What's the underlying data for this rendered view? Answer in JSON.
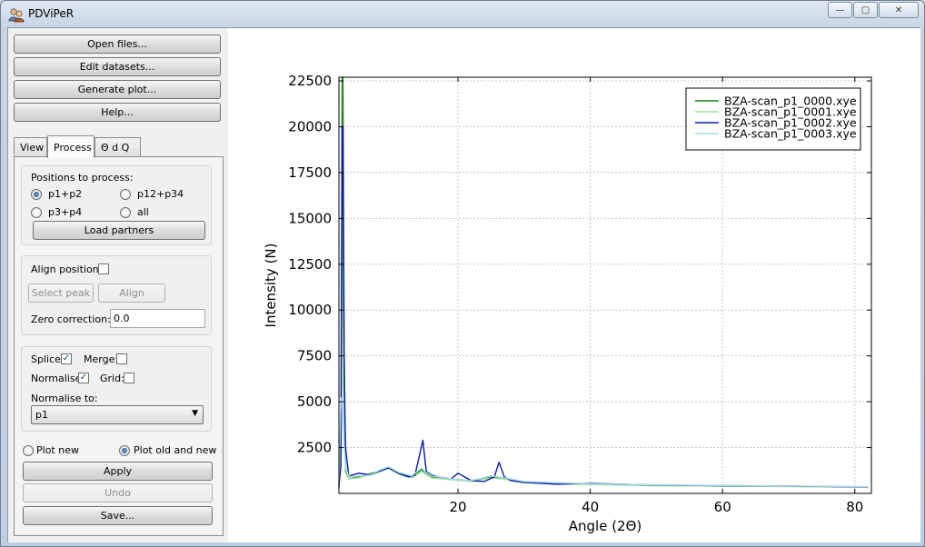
{
  "window": {
    "title": "PDViPeR",
    "minimize_glyph": "—",
    "maximize_glyph": "▢",
    "close_glyph": "✕"
  },
  "buttons": {
    "open_files": "Open files...",
    "edit_datasets": "Edit datasets...",
    "generate_plot": "Generate plot...",
    "help": "Help..."
  },
  "tabs": [
    {
      "label": "View"
    },
    {
      "label": "Process"
    },
    {
      "label": "Θ d Q"
    }
  ],
  "process": {
    "positions_label": "Positions to process:",
    "positions": [
      {
        "label": "p1+p2",
        "selected": true
      },
      {
        "label": "p12+p34",
        "selected": false
      },
      {
        "label": "p3+p4",
        "selected": false
      },
      {
        "label": "all",
        "selected": false
      }
    ],
    "load_partners": "Load partners",
    "align_positions_label": "Align positions:",
    "align_positions_checked": false,
    "select_peak": "Select peak",
    "align": "Align",
    "zero_correction_label": "Zero correction:",
    "zero_correction_value": "0.0",
    "splice_label": "Splice:",
    "splice_checked": true,
    "merge_label": "Merge:",
    "merge_checked": false,
    "normalise_label": "Normalise:",
    "normalise_checked": true,
    "grid_label": "Grid:",
    "grid_checked": false,
    "normalise_to_label": "Normalise to:",
    "normalise_to_value": "p1",
    "plot_new": "Plot new",
    "plot_old_and_new": "Plot old and new",
    "plot_mode_selected": "old_and_new",
    "apply": "Apply",
    "undo": "Undo",
    "save": "Save..."
  },
  "chart_data": {
    "type": "line",
    "xlabel": "Angle (2Θ)",
    "ylabel": "Intensity (N)",
    "xlim": [
      2,
      82.5
    ],
    "ylim": [
      0,
      22700
    ],
    "xticks": [
      20,
      40,
      60,
      80
    ],
    "yticks": [
      2500,
      5000,
      7500,
      10000,
      12500,
      15000,
      17500,
      20000,
      22500
    ],
    "grid": true,
    "legend_position": "top-right",
    "series": [
      {
        "name": "BZA-scan_p1_0000.xye",
        "color": "#1a8a1a",
        "x": [
          2.0,
          2.3,
          2.5,
          2.6,
          2.8,
          3.0,
          3.5,
          5,
          8,
          9.5,
          11,
          13,
          14.5,
          15,
          16,
          18,
          22,
          25,
          27,
          30,
          40,
          50,
          60,
          70,
          82
        ],
        "y": [
          300,
          3500,
          22700,
          22700,
          8000,
          1200,
          800,
          900,
          1200,
          1400,
          1100,
          900,
          1300,
          1100,
          900,
          800,
          700,
          900,
          800,
          600,
          500,
          430,
          400,
          380,
          350
        ]
      },
      {
        "name": "BZA-scan_p1_0001.xye",
        "color": "#9fe09f",
        "x": [
          2.0,
          2.4,
          2.6,
          2.8,
          3.0,
          3.5,
          5,
          8,
          9.5,
          11,
          13,
          14.5,
          16,
          18,
          22,
          25,
          27,
          30,
          40,
          50,
          60,
          70,
          82
        ],
        "y": [
          300,
          4000,
          16000,
          5000,
          1300,
          800,
          850,
          1150,
          1350,
          1050,
          850,
          1200,
          850,
          780,
          650,
          850,
          780,
          580,
          480,
          420,
          390,
          370,
          340
        ]
      },
      {
        "name": "BZA-scan_p1_0002.xye",
        "color": "#0a1aa8",
        "x": [
          2.0,
          2.3,
          2.5,
          2.6,
          2.8,
          3.0,
          3.5,
          4,
          5,
          7,
          8,
          9.5,
          11,
          12.5,
          13.5,
          14.7,
          15.2,
          16,
          17,
          19,
          20,
          22,
          24,
          25.5,
          26.2,
          27,
          28,
          30,
          35,
          40,
          50,
          60,
          70,
          82
        ],
        "y": [
          400,
          1500,
          20000,
          20000,
          6000,
          2500,
          900,
          1000,
          1100,
          1000,
          1200,
          1400,
          1100,
          900,
          1000,
          2900,
          1200,
          1000,
          900,
          800,
          1100,
          700,
          650,
          900,
          1700,
          900,
          700,
          600,
          500,
          550,
          450,
          420,
          400,
          350
        ]
      },
      {
        "name": "BZA-scan_p1_0003.xye",
        "color": "#a9d8e6",
        "x": [
          2.0,
          2.3,
          2.5,
          2.6,
          2.8,
          3.0,
          3.5,
          5,
          7,
          8,
          9.5,
          11,
          13,
          14.5,
          15,
          16,
          18,
          20,
          22,
          25,
          27,
          30,
          40,
          50,
          60,
          70,
          82
        ],
        "y": [
          600,
          5200,
          5200,
          4000,
          2500,
          1500,
          900,
          950,
          1000,
          1250,
          1450,
          1150,
          950,
          1400,
          1200,
          950,
          850,
          750,
          700,
          950,
          850,
          650,
          520,
          460,
          430,
          400,
          360
        ]
      }
    ]
  }
}
